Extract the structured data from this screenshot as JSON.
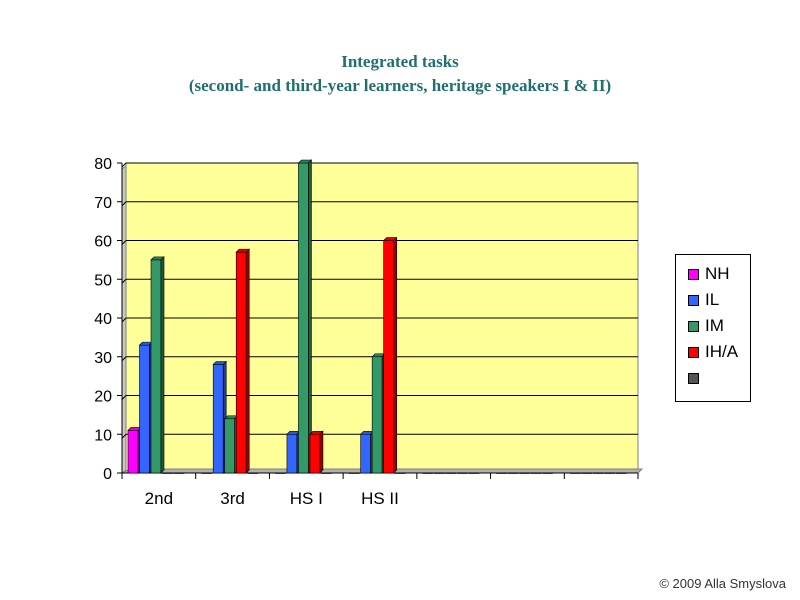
{
  "title_line1": "Integrated tasks",
  "title_line2": "(second-  and third-year learners, heritage speakers I & II)",
  "copyright": "© 2009 Alla Smyslova",
  "chart_data": {
    "type": "bar",
    "categories": [
      "2nd",
      "3rd",
      "HS I",
      "HS II",
      "",
      "",
      ""
    ],
    "series": [
      {
        "name": "NH",
        "color": "#ff00ff",
        "values": [
          11,
          0,
          0,
          0,
          0,
          0,
          0
        ]
      },
      {
        "name": "IL",
        "color": "#3366ff",
        "values": [
          33,
          28,
          10,
          10,
          0,
          0,
          0
        ]
      },
      {
        "name": "IM",
        "color": "#339966",
        "values": [
          55,
          14,
          80,
          30,
          0,
          0,
          0
        ]
      },
      {
        "name": "IH/A",
        "color": "#ff0000",
        "values": [
          0,
          57,
          10,
          60,
          0,
          0,
          0
        ]
      },
      {
        "name": "",
        "color": "#555555",
        "values": [
          0,
          0,
          0,
          0,
          0,
          0,
          0
        ]
      }
    ],
    "ylim": [
      0,
      80
    ],
    "yticks": [
      0,
      10,
      20,
      30,
      40,
      50,
      60,
      70,
      80
    ],
    "grid": true,
    "plot_background": "#ffff99",
    "legend": "right"
  }
}
